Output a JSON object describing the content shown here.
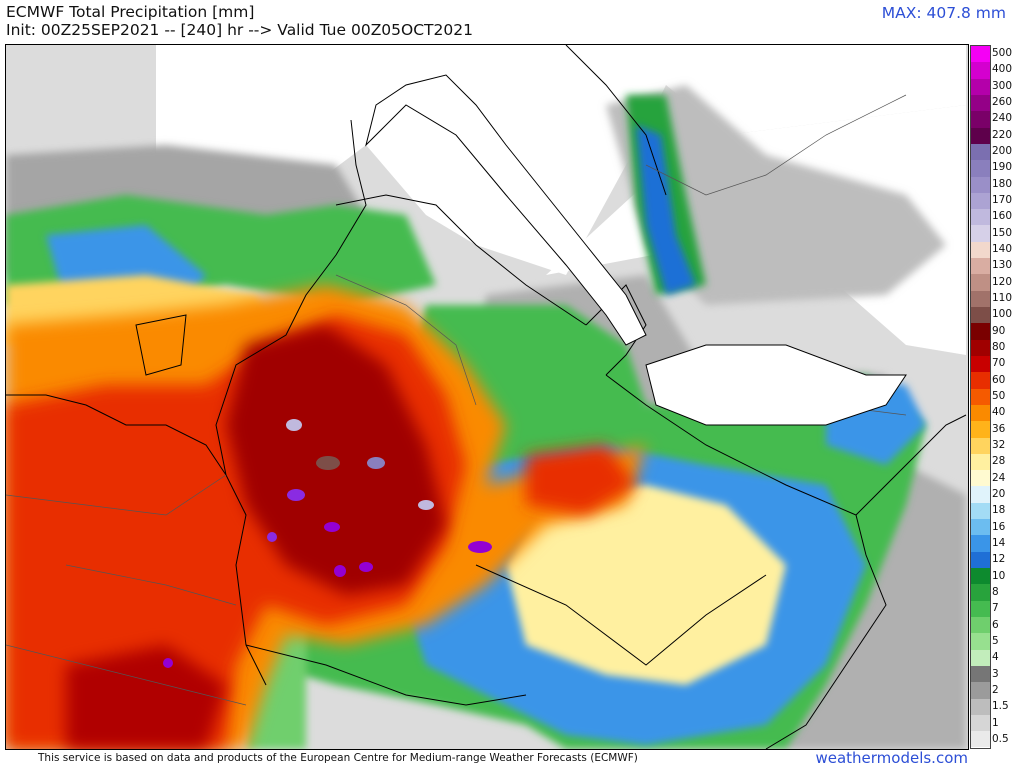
{
  "header": {
    "title": "ECMWF Total Precipitation [mm]",
    "subtitle": "Init: 00Z25SEP2021 -- [240] hr --> Valid Tue 00Z05OCT2021",
    "max_label": "MAX: 407.8 mm"
  },
  "colorbar": {
    "levels": [
      "500",
      "400",
      "300",
      "260",
      "240",
      "220",
      "200",
      "190",
      "180",
      "170",
      "160",
      "150",
      "140",
      "130",
      "120",
      "110",
      "100",
      "90",
      "80",
      "70",
      "60",
      "50",
      "40",
      "36",
      "32",
      "28",
      "24",
      "20",
      "18",
      "16",
      "14",
      "12",
      "10",
      "8",
      "7",
      "6",
      "5",
      "4",
      "3",
      "2",
      "1.5",
      "1",
      "0.5"
    ],
    "colors": [
      "#f500f5",
      "#d400cf",
      "#b400aa",
      "#940087",
      "#7a0068",
      "#5e004b",
      "#7b6fb0",
      "#8a7fbd",
      "#9a8fc8",
      "#aca3d3",
      "#c0b9de",
      "#d6d0e8",
      "#f2d8cc",
      "#d9ada2",
      "#bf9085",
      "#a1726a",
      "#7d4e48",
      "#7a0000",
      "#a00000",
      "#c80000",
      "#e82e00",
      "#f55a00",
      "#fa8a00",
      "#ffb31a",
      "#ffd45e",
      "#fff0a0",
      "#fffad0",
      "#e0f3fb",
      "#a3dcf5",
      "#6cbdf0",
      "#3a95e8",
      "#1f6fd6",
      "#0d8a2e",
      "#28a33c",
      "#45bb50",
      "#6fcf6d",
      "#97e08f",
      "#c2edbb",
      "#767676",
      "#9b9b9b",
      "#bdbdbd",
      "#d6d6d6",
      "#eaeaea"
    ]
  },
  "map": {
    "description_colors": {
      "heavy": "#a00000",
      "moderate": "#e82e00",
      "light_moderate": "#fa8a00",
      "light": "#ffd45e",
      "blue": "#3a95e8",
      "green": "#45bb50",
      "gray": "#9b9b9b",
      "dry": "#d9d9d9",
      "purple": "#8a2be2"
    }
  },
  "footer": {
    "credit": "This service is based on data and products of the European Centre for Medium-range Weather Forecasts (ECMWF)",
    "brand": "weathermodels.com"
  }
}
